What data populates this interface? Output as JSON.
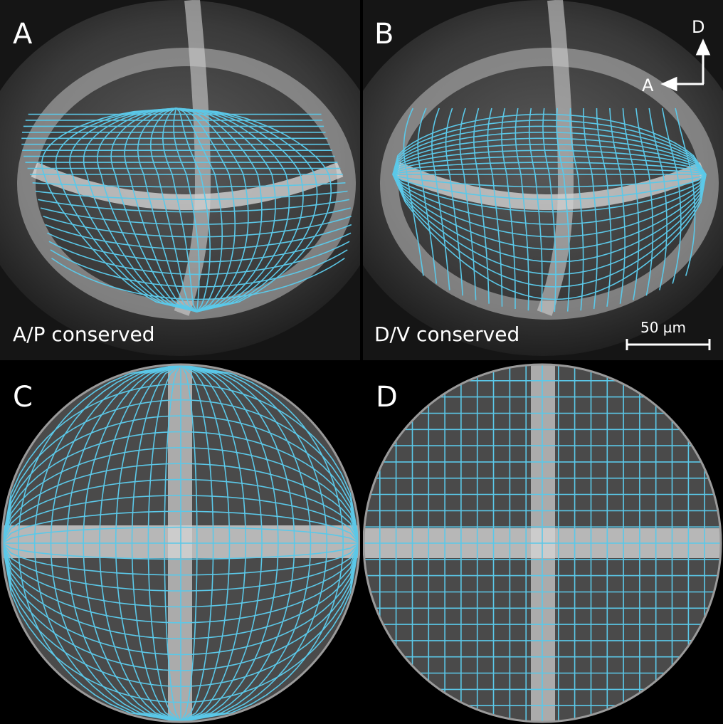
{
  "panels": {
    "a": {
      "letter": "A",
      "caption": "A/P conserved"
    },
    "b": {
      "letter": "B",
      "caption": "D/V conserved"
    },
    "c": {
      "letter": "C"
    },
    "d": {
      "letter": "D"
    }
  },
  "scale_bar": {
    "label": "50 µm"
  },
  "orientation": {
    "dorsal": "D",
    "anterior": "A"
  },
  "colors": {
    "grid": "#5bc8e8",
    "background": "#000000",
    "tissue": "#8a8a8a",
    "label": "#ffffff"
  }
}
